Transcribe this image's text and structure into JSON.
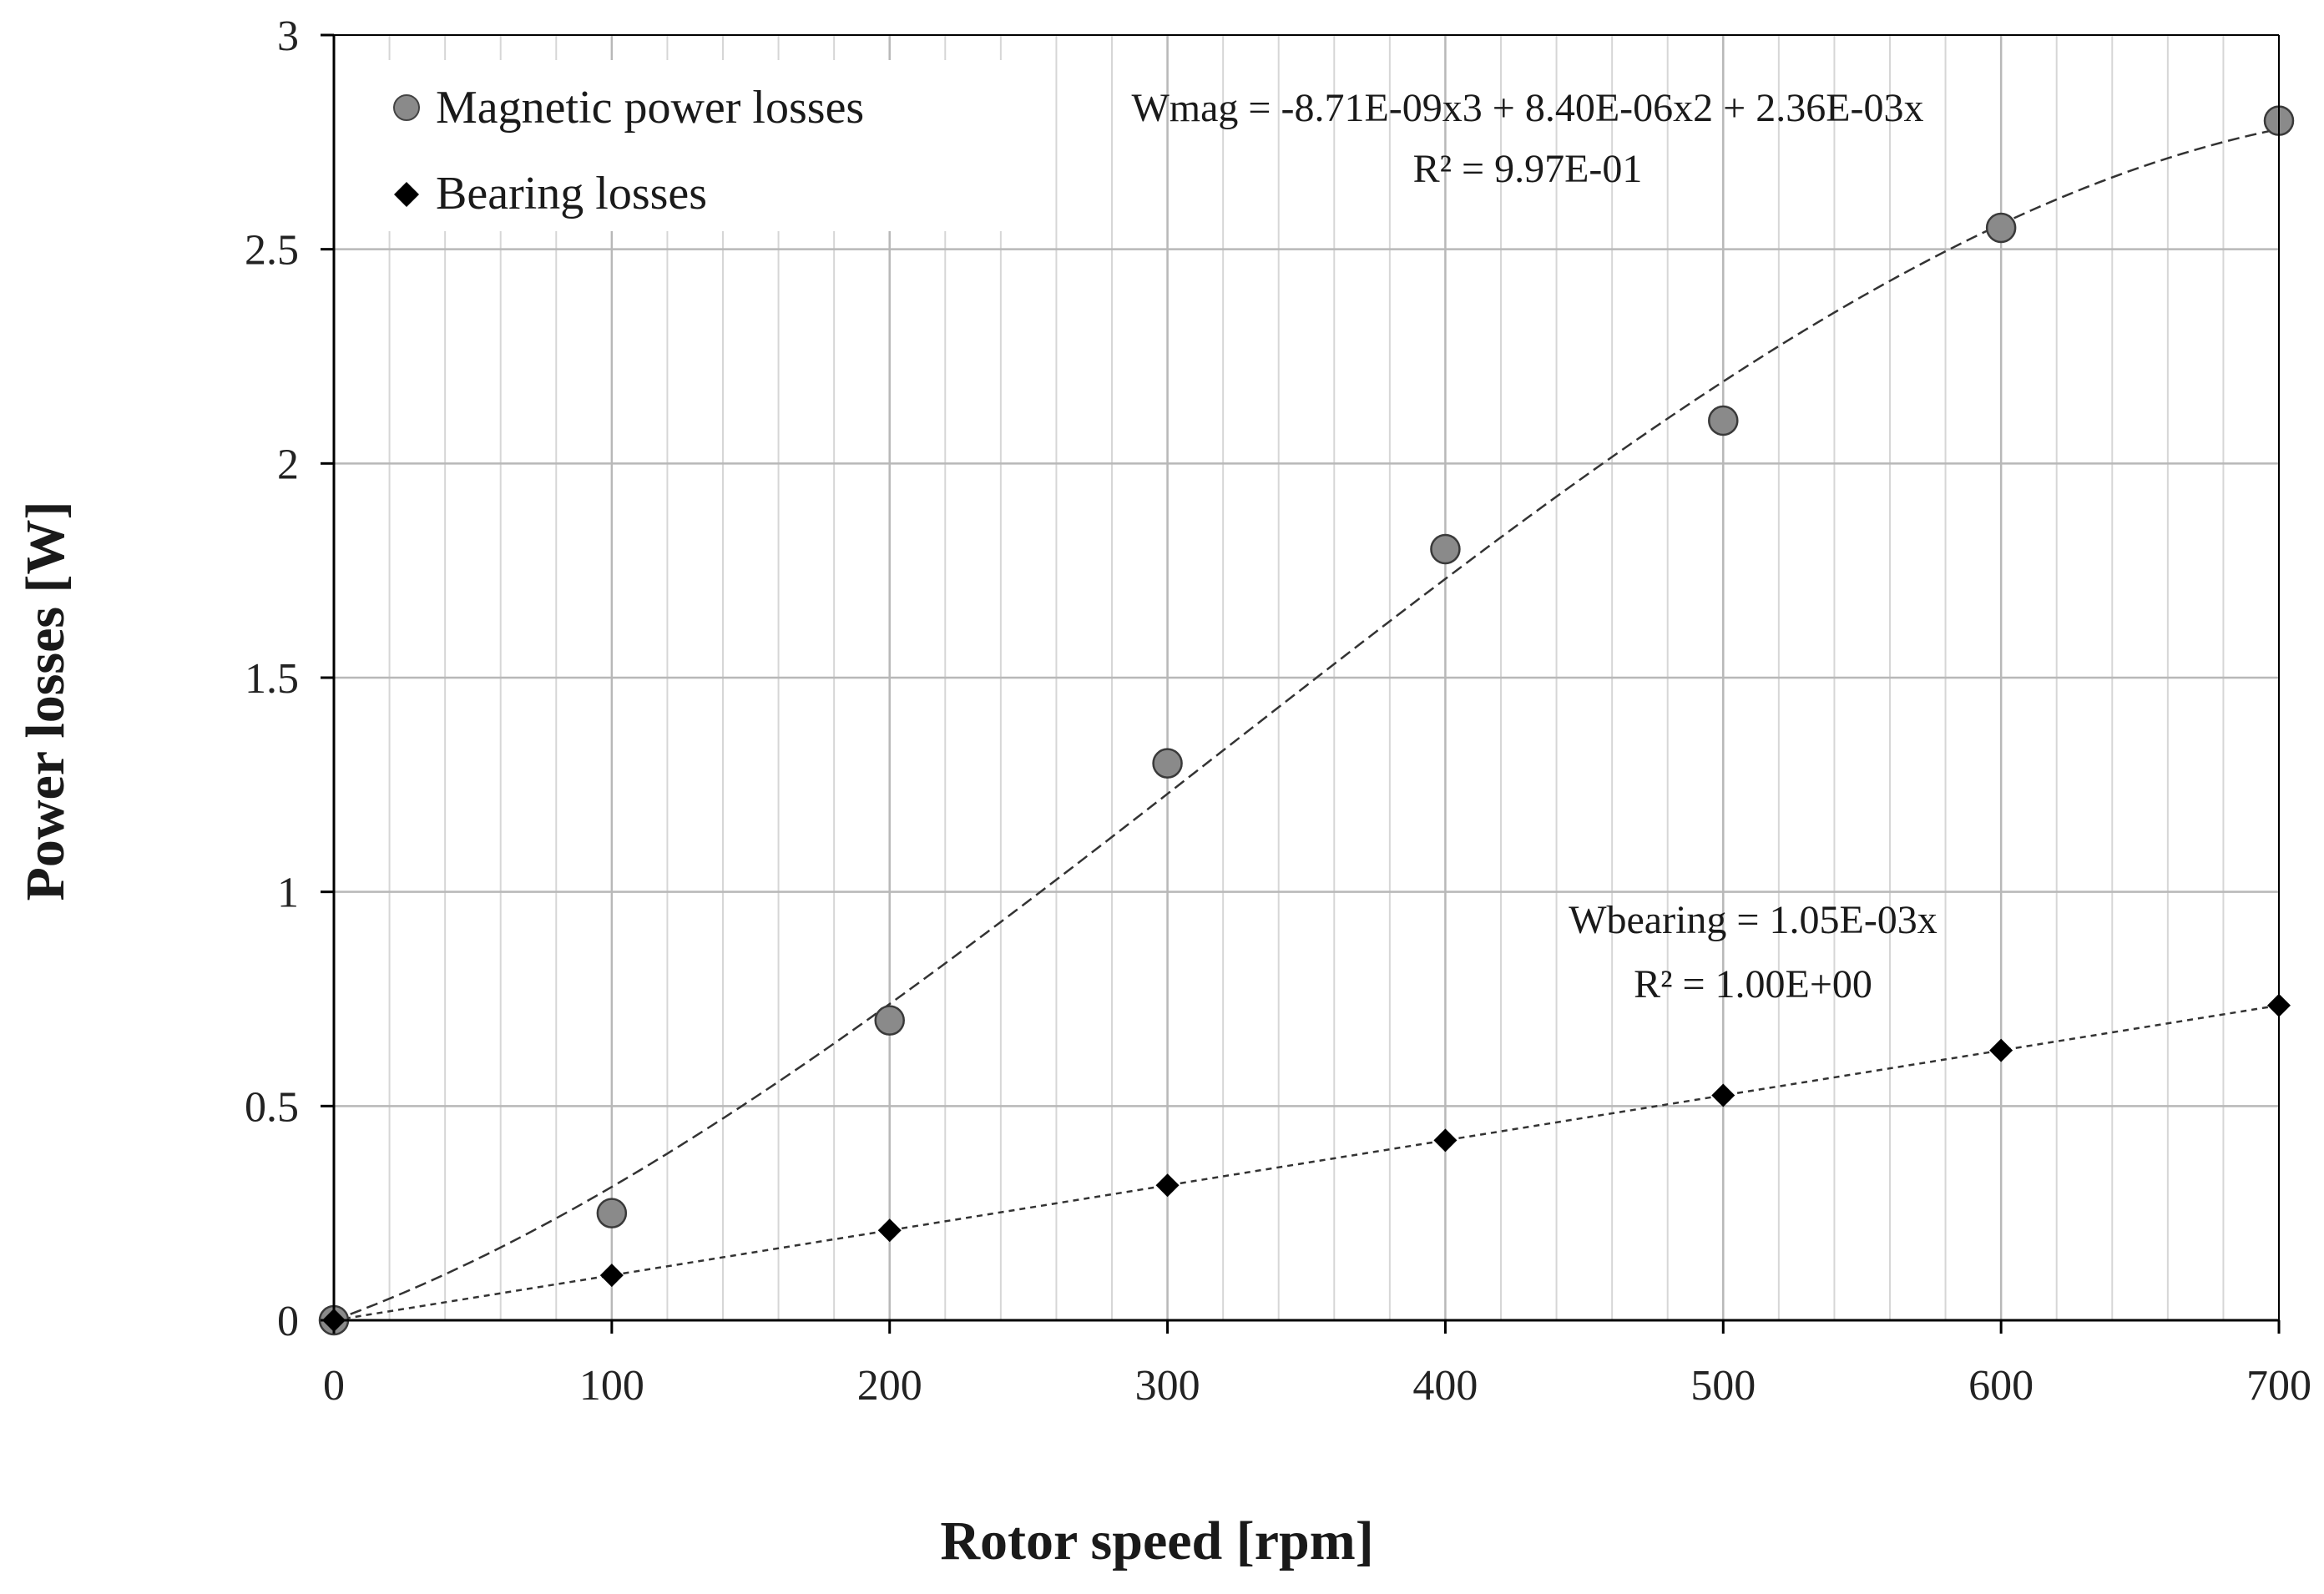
{
  "chart_data": {
    "type": "scatter",
    "title": "",
    "xlabel": "Rotor speed [rpm]",
    "ylabel": "Power losses [W]",
    "xlim": [
      0,
      700
    ],
    "ylim": [
      0,
      3
    ],
    "x_major_ticks": [
      0,
      100,
      200,
      300,
      400,
      500,
      600,
      700
    ],
    "x_tick_labels": [
      "0",
      "100",
      "200",
      "300",
      "400",
      "500",
      "600",
      "700"
    ],
    "x_minor_step": 20,
    "y_ticks": [
      0,
      0.5,
      1,
      1.5,
      2,
      2.5,
      3
    ],
    "y_tick_labels": [
      "0",
      "0.5",
      "1",
      "1.5",
      "2",
      "2.5",
      "3"
    ],
    "grid": true,
    "legend_position": "top-left",
    "series": [
      {
        "name": "Magnetic power losses",
        "marker": "circle",
        "color": "#8a8a8a",
        "x": [
          0,
          100,
          200,
          300,
          400,
          500,
          600,
          700
        ],
        "values": [
          0,
          0.25,
          0.7,
          1.3,
          1.8,
          2.1,
          2.55,
          2.8
        ],
        "trendline": {
          "type": "polynomial",
          "coefficients": {
            "a3": -8.71e-09,
            "a2": 8.4e-06,
            "a1": 0.00236,
            "a0": 0
          },
          "equation": "Wmag = -8.71E-09x3 + 8.40E-06x2 + 2.36E-03x",
          "r2": "R² = 9.97E-01"
        }
      },
      {
        "name": "Bearing losses",
        "marker": "diamond",
        "color": "#000000",
        "x": [
          0,
          100,
          200,
          300,
          400,
          500,
          600,
          700
        ],
        "values": [
          0,
          0.105,
          0.21,
          0.315,
          0.42,
          0.525,
          0.63,
          0.735
        ],
        "trendline": {
          "type": "linear",
          "coefficients": {
            "a1": 0.00105,
            "a0": 0
          },
          "equation": "Wbearing = 1.05E-03x",
          "r2": "R² = 1.00E+00"
        }
      }
    ]
  }
}
